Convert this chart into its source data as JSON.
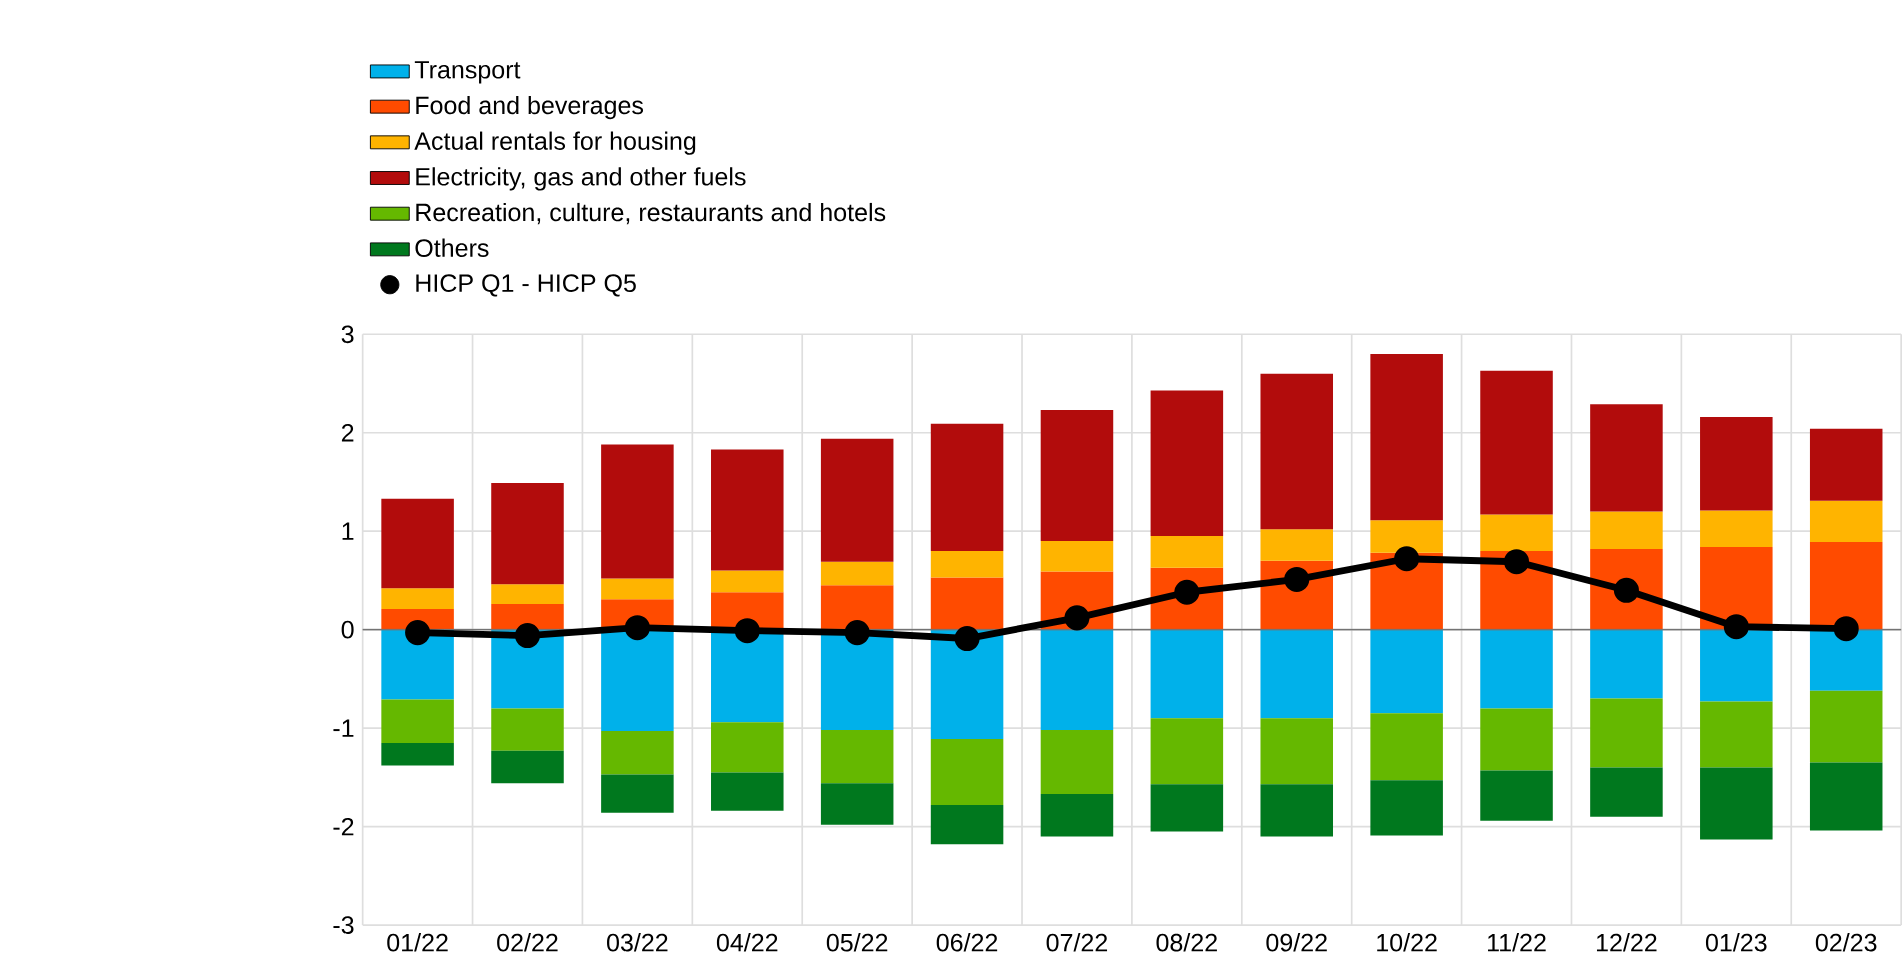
{
  "chart_data": {
    "type": "bar",
    "stacked": true,
    "grid": true,
    "legend": "top left",
    "categories": [
      "01/22",
      "02/22",
      "03/22",
      "04/22",
      "05/22",
      "06/22",
      "07/22",
      "08/22",
      "09/22",
      "10/22",
      "11/22",
      "12/22",
      "01/23",
      "02/23"
    ],
    "ylim": [
      -3,
      3
    ],
    "yticks": [
      -3,
      -2,
      -1,
      0,
      1,
      2,
      3
    ],
    "series": [
      {
        "name": "Transport",
        "color": "#00b1ea",
        "values": [
          -0.71,
          -0.8,
          -1.03,
          -0.94,
          -1.02,
          -1.11,
          -1.02,
          -0.9,
          -0.9,
          -0.85,
          -0.8,
          -0.7,
          -0.73,
          -0.62
        ]
      },
      {
        "name": "Food and beverages",
        "color": "#ff4b00",
        "values": [
          0.21,
          0.26,
          0.31,
          0.38,
          0.45,
          0.53,
          0.59,
          0.63,
          0.7,
          0.78,
          0.8,
          0.82,
          0.84,
          0.89
        ]
      },
      {
        "name": "Actual rentals for housing",
        "color": "#ffb400",
        "values": [
          0.21,
          0.2,
          0.21,
          0.22,
          0.24,
          0.27,
          0.31,
          0.32,
          0.32,
          0.33,
          0.37,
          0.38,
          0.37,
          0.42
        ]
      },
      {
        "name": "Electricity, gas and other fuels",
        "color": "#b20c0c",
        "values": [
          0.91,
          1.03,
          1.36,
          1.23,
          1.25,
          1.29,
          1.33,
          1.48,
          1.58,
          1.69,
          1.46,
          1.09,
          0.95,
          0.73
        ]
      },
      {
        "name": "Recreation, culture, restaurants and hotels",
        "color": "#65b800",
        "values": [
          -0.44,
          -0.43,
          -0.44,
          -0.51,
          -0.54,
          -0.67,
          -0.65,
          -0.67,
          -0.67,
          -0.68,
          -0.63,
          -0.7,
          -0.67,
          -0.73
        ]
      },
      {
        "name": "Others",
        "color": "#00781e",
        "values": [
          -0.23,
          -0.33,
          -0.39,
          -0.39,
          -0.42,
          -0.4,
          -0.43,
          -0.48,
          -0.53,
          -0.56,
          -0.51,
          -0.5,
          -0.73,
          -0.69
        ]
      },
      {
        "name": "HICP Q1 - HICP Q5",
        "color": "#000000",
        "type": "line",
        "marker": "circle",
        "values": [
          -0.03,
          -0.06,
          0.02,
          -0.01,
          -0.03,
          -0.09,
          0.12,
          0.38,
          0.51,
          0.72,
          0.69,
          0.4,
          0.03,
          0.01
        ]
      }
    ]
  }
}
